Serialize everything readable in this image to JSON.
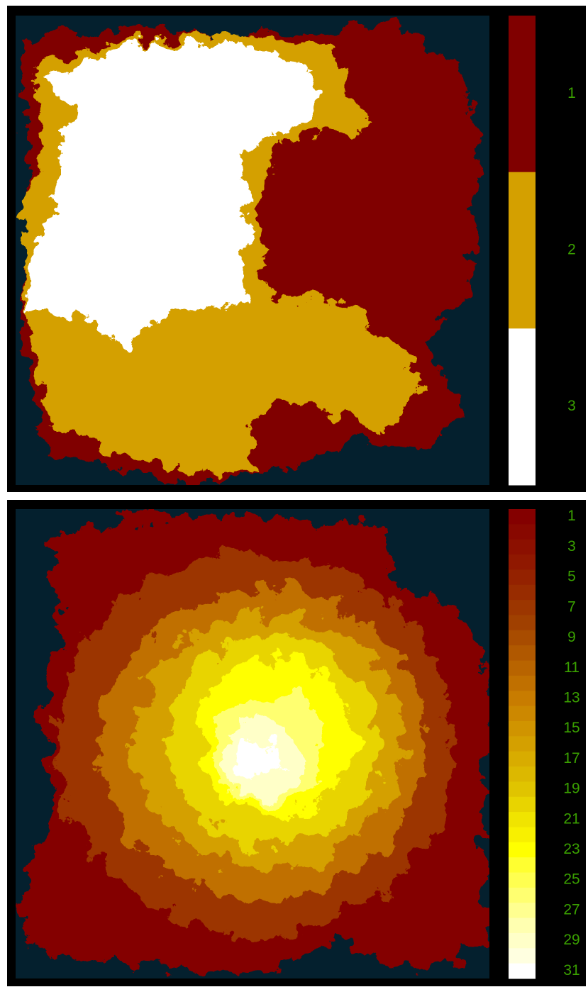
{
  "panels": [
    {
      "colorbar": {
        "labels": [
          1,
          2,
          3
        ],
        "colors": [
          "#800000",
          "#d4a000",
          "#ffffff"
        ]
      }
    },
    {
      "colorbar": {
        "labels": [
          1,
          3,
          5,
          7,
          9,
          11,
          13,
          15,
          17,
          19,
          21,
          23,
          25,
          27,
          29,
          31
        ],
        "colors": [
          "#840000",
          "#880800",
          "#8c1000",
          "#901800",
          "#942200",
          "#982c00",
          "#9c3600",
          "#a04000",
          "#a84c00",
          "#b05800",
          "#b86400",
          "#c07000",
          "#c87c00",
          "#cc8800",
          "#d09400",
          "#d4a000",
          "#d8ac00",
          "#dcb800",
          "#e0c400",
          "#e8d400",
          "#f0e400",
          "#f8f000",
          "#ffff00",
          "#ffff30",
          "#ffff50",
          "#ffff70",
          "#ffff90",
          "#ffffb0",
          "#ffffc8",
          "#ffffe0",
          "#ffffff"
        ]
      }
    }
  ]
}
